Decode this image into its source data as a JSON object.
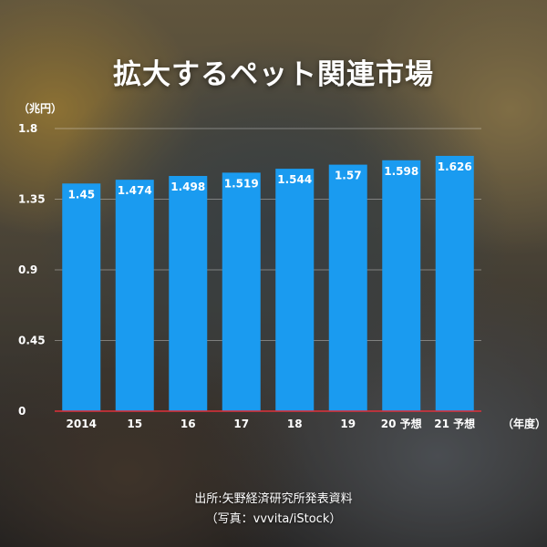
{
  "title": "拡大するペット関連市場",
  "unit_label": "（兆円）",
  "source": "出所:矢野経済研究所発表資料",
  "photo_credit": "（写真：vvvita/iStock）",
  "colors": {
    "bar": "#1a9bf0",
    "baseline": "#e0303a",
    "text": "#ffffff"
  },
  "chart_data": {
    "type": "bar",
    "categories": [
      "2014",
      "15",
      "16",
      "17",
      "18",
      "19",
      "20 予想",
      "21 予想"
    ],
    "values": [
      1.45,
      1.474,
      1.498,
      1.519,
      1.544,
      1.57,
      1.598,
      1.626
    ],
    "value_labels": [
      "1.45",
      "1.474",
      "1.498",
      "1.519",
      "1.544",
      "1.57",
      "1.598",
      "1.626"
    ],
    "xlabel": "（年度）",
    "ylabel": "（兆円）",
    "ylim": [
      0,
      1.8
    ],
    "yticks": [
      0,
      0.45,
      0.9,
      1.35,
      1.8
    ],
    "ytick_labels": [
      "0",
      "0.45",
      "0.9",
      "1.35",
      "1.8"
    ],
    "grid": true
  }
}
